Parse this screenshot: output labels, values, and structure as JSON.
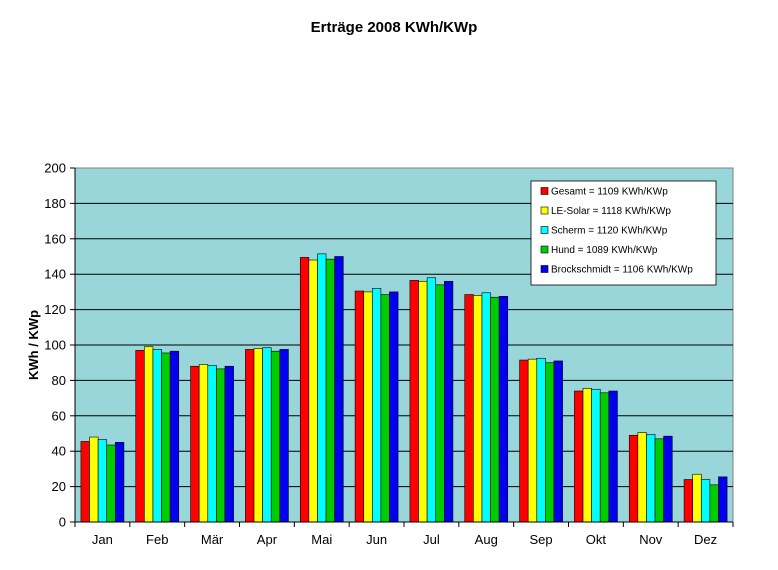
{
  "chart_data": {
    "type": "bar",
    "title": "Erträge 2008 KWh/KWp",
    "xlabel": "",
    "ylabel": "KWh / KWp",
    "ylim": [
      0,
      200
    ],
    "yticks": [
      "0",
      "20",
      "40",
      "60",
      "80",
      "100",
      "120",
      "140",
      "160",
      "180",
      "200"
    ],
    "grid": true,
    "legend_position": "top-right",
    "plot_background": "#99d6d9",
    "categories": [
      "Jan",
      "Feb",
      "Mär",
      "Apr",
      "Mai",
      "Jun",
      "Jul",
      "Aug",
      "Sep",
      "Okt",
      "Nov",
      "Dez"
    ],
    "series": [
      {
        "name": "Gesamt = 1109 KWh/KWp",
        "color": "#ff0000",
        "values": [
          45.5,
          97,
          88,
          97.5,
          149.5,
          130.5,
          136.5,
          128.5,
          91.5,
          74,
          49,
          24
        ]
      },
      {
        "name": "LE-Solar = 1118 KWh/KWp",
        "color": "#ffff00",
        "values": [
          48,
          99,
          89,
          98,
          148,
          130,
          136,
          128,
          92,
          75.5,
          50.5,
          27
        ]
      },
      {
        "name": "Scherm = 1120 KWh/KWp",
        "color": "#00ffff",
        "values": [
          46.5,
          97.5,
          88.5,
          98.5,
          151.5,
          132,
          138,
          129.5,
          92.5,
          75,
          49.5,
          24
        ]
      },
      {
        "name": "Hund = 1089 KWh/KWp",
        "color": "#00cc00",
        "values": [
          43.5,
          95.5,
          86.5,
          96.5,
          148.5,
          128.5,
          134,
          127,
          90,
          73,
          47,
          21
        ]
      },
      {
        "name": "Brockschmidt = 1106 KWh/KWp",
        "color": "#0000ee",
        "values": [
          45,
          96.5,
          88,
          97.5,
          150,
          130,
          136,
          127.5,
          91,
          74,
          48.5,
          25.5
        ]
      }
    ]
  }
}
